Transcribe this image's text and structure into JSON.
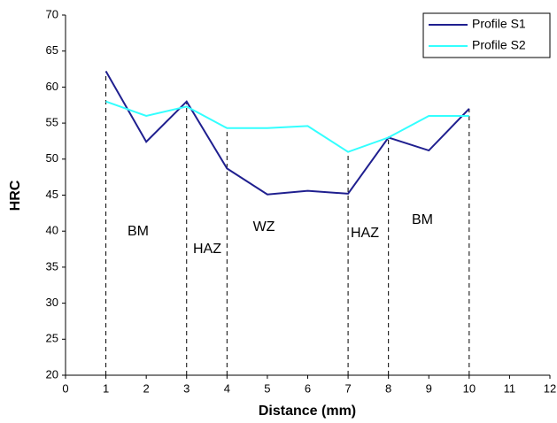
{
  "chart_data": {
    "type": "line",
    "x_label": "Distance (mm)",
    "y_label": "HRC",
    "x": [
      1,
      2,
      3,
      4,
      5,
      6,
      7,
      8,
      9,
      10
    ],
    "series": [
      {
        "name": "Profile S1",
        "color": "#1f1f8f",
        "values": [
          62.2,
          52.4,
          58,
          48.7,
          45.1,
          45.6,
          45.2,
          53,
          51.2,
          57
        ]
      },
      {
        "name": "Profile S2",
        "color": "#33ffff",
        "values": [
          58,
          56,
          57.3,
          54.3,
          54.3,
          54.6,
          51,
          53,
          56,
          56
        ]
      }
    ],
    "xlim": [
      0,
      12
    ],
    "xticks": [
      0,
      1,
      2,
      3,
      4,
      5,
      6,
      7,
      8,
      9,
      10,
      11,
      12
    ],
    "ylim": [
      20,
      70
    ],
    "yticks": [
      20,
      25,
      30,
      35,
      40,
      45,
      50,
      55,
      60,
      65,
      70
    ],
    "dividers": [
      1,
      3,
      4,
      7,
      8,
      10
    ],
    "annotations": [
      "BM",
      "HAZ",
      "WZ",
      "HAZ",
      "BM"
    ],
    "legend": "upper right",
    "grid": false
  }
}
